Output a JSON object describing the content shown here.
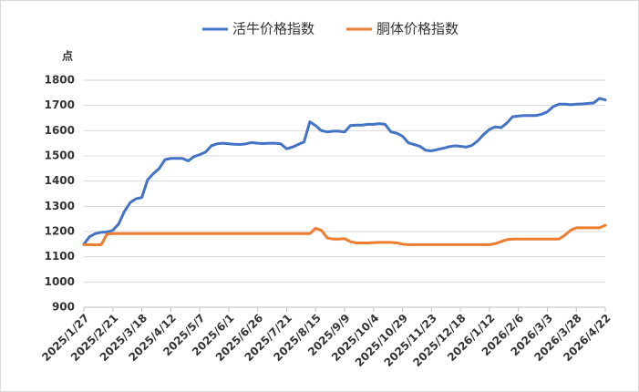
{
  "chart_data": {
    "type": "line",
    "ylabel": "点",
    "categories": [
      "2025/1/27",
      null,
      null,
      null,
      null,
      "2025/2/21",
      null,
      null,
      null,
      null,
      "2025/3/18",
      null,
      null,
      null,
      null,
      "2025/4/12",
      null,
      null,
      null,
      null,
      "2025/5/7",
      null,
      null,
      null,
      null,
      "2025/6/1",
      null,
      null,
      null,
      null,
      "2025/6/26",
      null,
      null,
      null,
      null,
      "2025/7/21",
      null,
      null,
      null,
      null,
      "2025/8/15",
      null,
      null,
      null,
      null,
      "2025/9/9",
      null,
      null,
      null,
      null,
      "2025/10/4",
      null,
      null,
      null,
      null,
      "2025/10/29",
      null,
      null,
      null,
      null,
      "2025/11/23",
      null,
      null,
      null,
      null,
      "2025/12/18",
      null,
      null,
      null,
      null,
      "2026/1/12",
      null,
      null,
      null,
      null,
      "2026/2/6",
      null,
      null,
      null,
      null,
      "2026/3/3",
      null,
      null,
      null,
      null,
      "2026/3/28",
      null,
      null,
      null,
      null,
      "2026/4/22"
    ],
    "series": [
      {
        "name": "活牛价格指数",
        "color": "#4472c4",
        "values": [
          1150,
          1180,
          1192,
          1197,
          1198,
          1205,
          1230,
          1280,
          1315,
          1330,
          1335,
          1405,
          1430,
          1450,
          1485,
          1490,
          1490,
          1490,
          1480,
          1497,
          1505,
          1515,
          1540,
          1548,
          1550,
          1548,
          1546,
          1545,
          1548,
          1553,
          1550,
          1549,
          1550,
          1550,
          1548,
          1528,
          1535,
          1545,
          1555,
          1635,
          1620,
          1600,
          1595,
          1598,
          1598,
          1595,
          1620,
          1622,
          1622,
          1625,
          1625,
          1628,
          1625,
          1595,
          1590,
          1578,
          1552,
          1545,
          1538,
          1522,
          1520,
          1525,
          1530,
          1536,
          1540,
          1538,
          1535,
          1542,
          1560,
          1585,
          1605,
          1615,
          1612,
          1630,
          1655,
          1658,
          1660,
          1660,
          1660,
          1665,
          1675,
          1695,
          1705,
          1705,
          1703,
          1705,
          1706,
          1708,
          1710,
          1728,
          1722
        ]
      },
      {
        "name": "胴体价格指数",
        "color": "#ed7d31",
        "values": [
          1148,
          1148,
          1147,
          1148,
          1190,
          1192,
          1192,
          1192,
          1192,
          1192,
          1192,
          1192,
          1192,
          1192,
          1192,
          1192,
          1192,
          1192,
          1192,
          1192,
          1192,
          1192,
          1192,
          1192,
          1192,
          1192,
          1192,
          1192,
          1192,
          1192,
          1192,
          1192,
          1192,
          1192,
          1192,
          1192,
          1192,
          1192,
          1192,
          1192,
          1213,
          1205,
          1175,
          1170,
          1170,
          1172,
          1160,
          1155,
          1155,
          1155,
          1156,
          1157,
          1157,
          1157,
          1155,
          1150,
          1148,
          1148,
          1148,
          1148,
          1148,
          1148,
          1148,
          1148,
          1148,
          1148,
          1148,
          1148,
          1148,
          1148,
          1148,
          1152,
          1160,
          1168,
          1170,
          1170,
          1170,
          1170,
          1170,
          1170,
          1170,
          1170,
          1170,
          1185,
          1205,
          1215,
          1215,
          1215,
          1215,
          1215,
          1225
        ]
      }
    ],
    "ylim": [
      900,
      1800
    ],
    "yticks": [
      900,
      1000,
      1100,
      1200,
      1300,
      1400,
      1500,
      1600,
      1700,
      1800
    ],
    "grid": true
  }
}
